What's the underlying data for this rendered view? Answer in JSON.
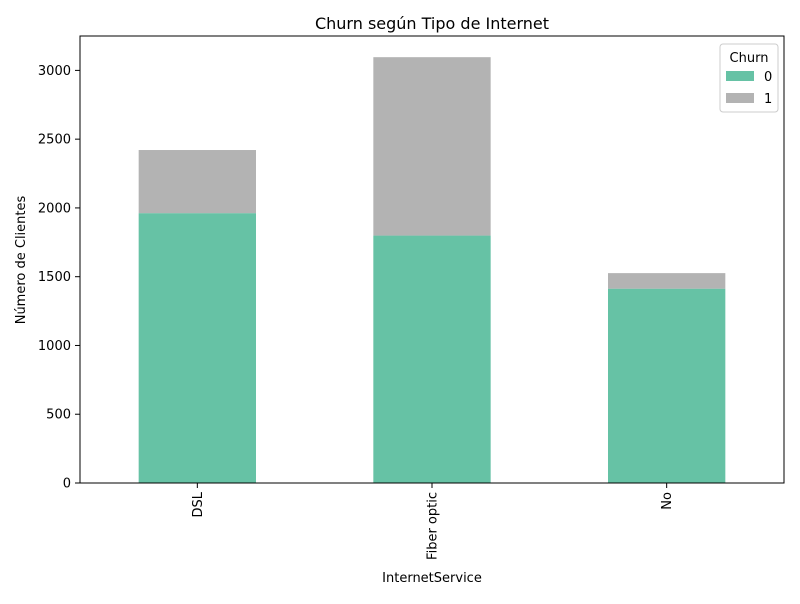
{
  "chart_data": {
    "type": "bar",
    "stacked": true,
    "title": "Churn según Tipo de Internet",
    "xlabel": "InternetService",
    "ylabel": "Número de Clientes",
    "categories": [
      "DSL",
      "Fiber optic",
      "No"
    ],
    "series": [
      {
        "name": "0",
        "values": [
          1962,
          1799,
          1413
        ],
        "color": "#66c2a5"
      },
      {
        "name": "1",
        "values": [
          459,
          1297,
          113
        ],
        "color": "#b3b3b3"
      }
    ],
    "ylim": [
      0,
      3250
    ],
    "yticks": [
      0,
      500,
      1000,
      1500,
      2000,
      2500,
      3000
    ],
    "grid": false,
    "legend": {
      "title": "Churn",
      "position": "top-right"
    }
  }
}
